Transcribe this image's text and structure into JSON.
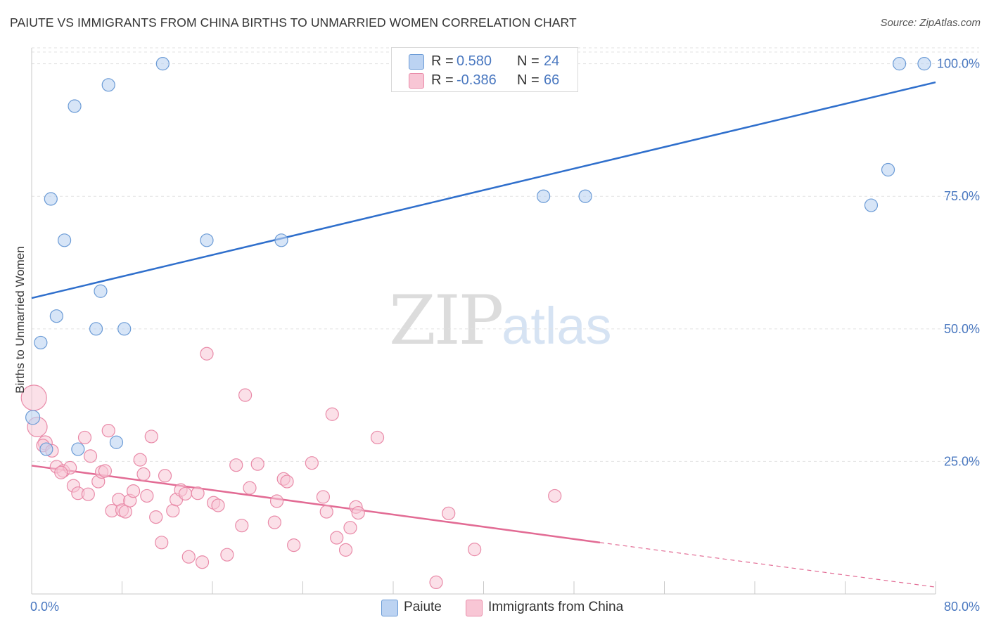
{
  "title": "PAIUTE VS IMMIGRANTS FROM CHINA BIRTHS TO UNMARRIED WOMEN CORRELATION CHART",
  "source": "Source: ZipAtlas.com",
  "watermark": {
    "zip": "ZIP",
    "atlas": "atlas"
  },
  "legend": {
    "paiute": {
      "r_label": "R =",
      "r_value": "0.580",
      "n_label": "N =",
      "n_value": "24"
    },
    "china": {
      "r_label": "R =",
      "r_value": "-0.386",
      "n_label": "N =",
      "n_value": "66"
    }
  },
  "bottom_legend": {
    "paiute": "Paiute",
    "china": "Immigrants from China"
  },
  "colors": {
    "paiute_fill": "#bcd3f2",
    "paiute_stroke": "#6b9bd6",
    "paiute_line": "#2f6fcc",
    "china_fill": "#f8c6d5",
    "china_stroke": "#e98aa8",
    "china_line": "#e26b94",
    "tick_label": "#4a78c0",
    "grid": "#e2e2e2"
  },
  "chart_data": {
    "type": "scatter",
    "title": "PAIUTE VS IMMIGRANTS FROM CHINA BIRTHS TO UNMARRIED WOMEN CORRELATION CHART",
    "xlabel": "",
    "ylabel": "Births to Unmarried Women",
    "xlim": [
      0,
      80
    ],
    "ylim": [
      0,
      103
    ],
    "x_tick_labels": [
      "0.0%",
      "80.0%"
    ],
    "y_ticks": [
      25,
      50,
      75,
      100
    ],
    "y_tick_labels": [
      "25.0%",
      "50.0%",
      "75.0%",
      "100.0%"
    ],
    "grid": true,
    "legend_position": "top-center",
    "series": [
      {
        "name": "Paiute",
        "r": 0.58,
        "n": 24,
        "trend": {
          "x0": 0,
          "y0": 55.8,
          "x1": 80,
          "y1": 96.5
        },
        "points": [
          [
            11.6,
            100,
            9
          ],
          [
            45.6,
            100,
            9
          ],
          [
            76.8,
            100,
            9
          ],
          [
            79.0,
            100,
            9
          ],
          [
            6.8,
            96,
            9
          ],
          [
            3.8,
            92,
            9
          ],
          [
            1.7,
            74.5,
            9
          ],
          [
            2.9,
            66.7,
            9
          ],
          [
            15.5,
            66.7,
            9
          ],
          [
            22.1,
            66.7,
            9
          ],
          [
            45.3,
            75,
            9
          ],
          [
            49.0,
            75,
            9
          ],
          [
            75.8,
            80,
            9
          ],
          [
            74.3,
            73.3,
            9
          ],
          [
            6.1,
            57.1,
            9
          ],
          [
            2.2,
            52.4,
            9
          ],
          [
            5.7,
            50,
            9
          ],
          [
            8.2,
            50,
            9
          ],
          [
            0.8,
            47.4,
            9
          ],
          [
            0.1,
            33.3,
            10
          ],
          [
            1.3,
            27.3,
            9
          ],
          [
            4.1,
            27.3,
            9
          ],
          [
            7.5,
            28.6,
            9
          ],
          [
            45.9,
            100,
            9
          ]
        ]
      },
      {
        "name": "Immigrants from China",
        "r": -0.386,
        "n": 66,
        "trend": {
          "x0": 0,
          "y0": 24.2,
          "x1": 50.3,
          "y1": 9.7,
          "dash_x1": 80,
          "dash_y1": 1.3
        },
        "points": [
          [
            0.2,
            37,
            18
          ],
          [
            0.5,
            31.5,
            14
          ],
          [
            1.2,
            28.5,
            10
          ],
          [
            1.0,
            28,
            9
          ],
          [
            1.8,
            27,
            9
          ],
          [
            2.2,
            24,
            9
          ],
          [
            2.8,
            23.2,
            9
          ],
          [
            3.4,
            23.8,
            9
          ],
          [
            2.6,
            22.9,
            9
          ],
          [
            3.7,
            20.4,
            9
          ],
          [
            4.1,
            19,
            9
          ],
          [
            5.0,
            18.8,
            9
          ],
          [
            5.2,
            26,
            9
          ],
          [
            4.7,
            29.5,
            9
          ],
          [
            5.9,
            21.2,
            9
          ],
          [
            6.2,
            23,
            9
          ],
          [
            6.5,
            23.2,
            9
          ],
          [
            6.8,
            30.8,
            9
          ],
          [
            7.1,
            15.7,
            9
          ],
          [
            7.7,
            17.8,
            9
          ],
          [
            8.0,
            15.8,
            9
          ],
          [
            8.3,
            15.5,
            9
          ],
          [
            8.7,
            17.6,
            9
          ],
          [
            9.0,
            19.4,
            9
          ],
          [
            9.6,
            25.3,
            9
          ],
          [
            9.9,
            22.6,
            9
          ],
          [
            10.2,
            18.5,
            9
          ],
          [
            10.6,
            29.7,
            9
          ],
          [
            11.0,
            14.5,
            9
          ],
          [
            11.5,
            9.7,
            9
          ],
          [
            11.8,
            22.3,
            9
          ],
          [
            12.5,
            15.7,
            9
          ],
          [
            12.8,
            17.8,
            9
          ],
          [
            13.2,
            19.6,
            9
          ],
          [
            13.6,
            18.9,
            9
          ],
          [
            13.9,
            7,
            9
          ],
          [
            14.7,
            19,
            9
          ],
          [
            15.1,
            6,
            9
          ],
          [
            15.5,
            45.3,
            9
          ],
          [
            16.1,
            17.2,
            9
          ],
          [
            16.5,
            16.7,
            9
          ],
          [
            17.3,
            7.4,
            9
          ],
          [
            18.1,
            24.3,
            9
          ],
          [
            18.6,
            12.9,
            9
          ],
          [
            18.9,
            37.5,
            9
          ],
          [
            19.3,
            20,
            9
          ],
          [
            20.0,
            24.5,
            9
          ],
          [
            21.7,
            17.5,
            9
          ],
          [
            21.5,
            13.5,
            9
          ],
          [
            22.3,
            21.7,
            9
          ],
          [
            22.6,
            21.2,
            9
          ],
          [
            23.2,
            9.2,
            9
          ],
          [
            24.8,
            24.7,
            9
          ],
          [
            25.8,
            18.3,
            9
          ],
          [
            26.1,
            15.5,
            9
          ],
          [
            26.6,
            33.9,
            9
          ],
          [
            27.0,
            10.6,
            9
          ],
          [
            27.8,
            8.3,
            9
          ],
          [
            28.2,
            12.5,
            9
          ],
          [
            28.7,
            16.4,
            9
          ],
          [
            28.9,
            15.3,
            9
          ],
          [
            30.6,
            29.5,
            9
          ],
          [
            35.8,
            2.2,
            9
          ],
          [
            36.9,
            15.2,
            9
          ],
          [
            39.2,
            8.4,
            9
          ],
          [
            46.3,
            18.5,
            9
          ]
        ]
      }
    ]
  }
}
